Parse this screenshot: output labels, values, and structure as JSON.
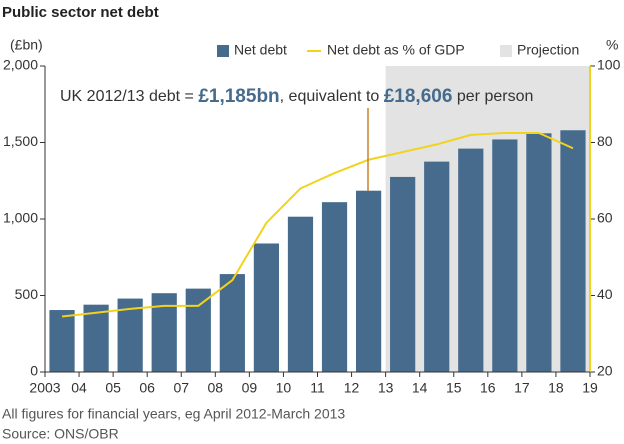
{
  "chart_data": {
    "type": "bar",
    "title": "Public sector net debt",
    "y_label": "(£bn)",
    "y2_label": "%",
    "x": [
      2003,
      2004,
      2005,
      2006,
      2007,
      2008,
      2009,
      2010,
      2011,
      2012,
      2013,
      2014,
      2015,
      2016,
      2017,
      2018
    ],
    "xlim": [
      2003,
      2019
    ],
    "xticks": [
      2003,
      {
        "value": 2004,
        "label": "04"
      },
      {
        "value": 2005,
        "label": "05"
      },
      {
        "value": 2006,
        "label": "06"
      },
      {
        "value": 2007,
        "label": "07"
      },
      {
        "value": 2008,
        "label": "08"
      },
      {
        "value": 2009,
        "label": "09"
      },
      {
        "value": 2010,
        "label": "10"
      },
      {
        "value": 2011,
        "label": "11"
      },
      {
        "value": 2012,
        "label": "12"
      },
      {
        "value": 2013,
        "label": "13"
      },
      {
        "value": 2014,
        "label": "14"
      },
      {
        "value": 2015,
        "label": "15"
      },
      {
        "value": 2016,
        "label": "16"
      },
      {
        "value": 2017,
        "label": "17"
      },
      {
        "value": 2018,
        "label": "18"
      },
      {
        "value": 2019,
        "label": "19"
      }
    ],
    "ylim": [
      0,
      2000
    ],
    "yticks": [
      0,
      500,
      {
        "value": 1000,
        "label": "1,000"
      },
      {
        "value": 1500,
        "label": "1,500"
      },
      {
        "value": 2000,
        "label": "2,000"
      }
    ],
    "y2lim": [
      20,
      100
    ],
    "y2ticks": [
      20,
      40,
      60,
      80,
      100
    ],
    "series": [
      {
        "name": "Net debt",
        "type": "bar",
        "color": "#466b8c",
        "values": [
          405,
          440,
          480,
          515,
          545,
          640,
          840,
          1015,
          1110,
          1185,
          1275,
          1375,
          1460,
          1520,
          1560,
          1580
        ]
      },
      {
        "name": "Net debt as % of GDP",
        "type": "line",
        "axis": "y2",
        "color": "#f2d31b",
        "values": [
          34.5,
          35.5,
          36.5,
          37.3,
          37.3,
          44,
          59,
          68,
          72,
          75.5,
          77.5,
          79.5,
          82,
          82.5,
          82.5,
          78.5
        ]
      }
    ],
    "projection": {
      "name": "Projection",
      "color": "#e3e3e3",
      "xlim": [
        2013,
        2019
      ]
    },
    "annotation": [
      "UK 2012/13 debt = ",
      "£1,185bn",
      ", equivalent to ",
      "£18,606",
      " per person"
    ],
    "notes": [
      "All figures for financial years, eg April 2012-March 2013",
      "Source: ONS/OBR"
    ]
  }
}
